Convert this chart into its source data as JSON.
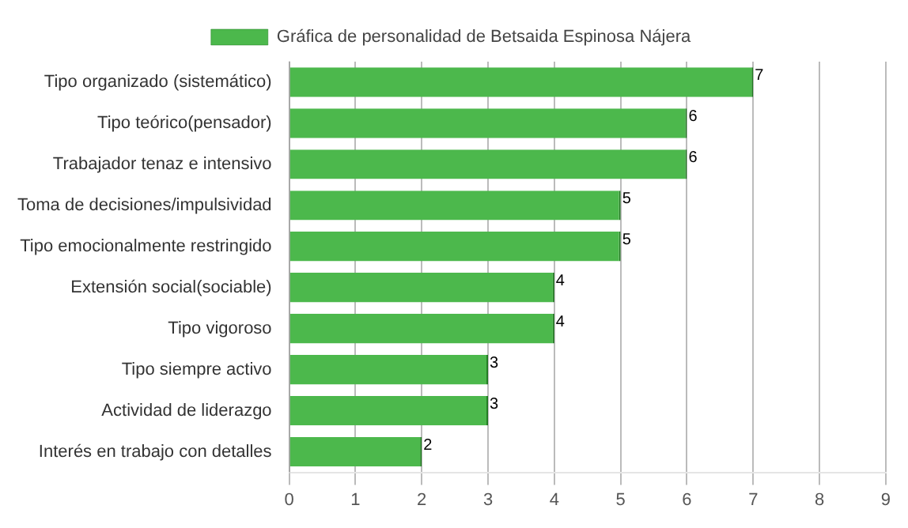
{
  "chart_data": {
    "type": "bar",
    "orientation": "horizontal",
    "categories": [
      "Tipo organizado (sistemático)",
      "Tipo teórico(pensador)",
      "Trabajador tenaz e intensivo",
      "Toma de decisiones/impulsividad",
      "Tipo emocionalmente restringido",
      "Extensión social(sociable)",
      "Tipo vigoroso",
      "Tipo siempre activo",
      "Actividad de liderazgo",
      "Interés en trabajo con detalles"
    ],
    "series": [
      {
        "name": "Gráfica de personalidad de Betsaida Espinosa Nájera",
        "color": "#4cb84c",
        "values": [
          7,
          6,
          6,
          5,
          5,
          4,
          4,
          3,
          3,
          2
        ]
      }
    ],
    "xlim": [
      0,
      9
    ],
    "xticks": [
      0,
      1,
      2,
      3,
      4,
      5,
      6,
      7,
      8,
      9
    ],
    "grid": "x",
    "legend": "top",
    "data_labels": true
  }
}
